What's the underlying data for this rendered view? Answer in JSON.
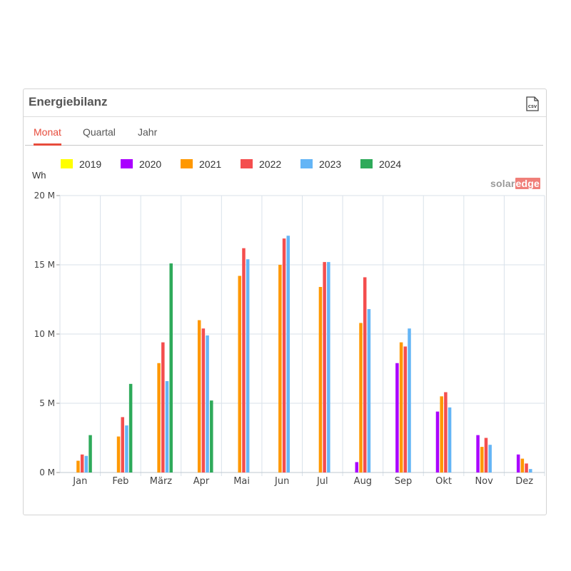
{
  "panel": {
    "title": "Energiebilanz",
    "csv_icon": "csv-file-icon",
    "tabs": [
      {
        "label": "Monat",
        "active": true
      },
      {
        "label": "Quartal",
        "active": false
      },
      {
        "label": "Jahr",
        "active": false
      }
    ],
    "unit_label": "Wh",
    "brand": {
      "part1": "solar",
      "part2": "edge"
    }
  },
  "colors": {
    "accent": "#e74c3c",
    "grid": "#d9e2ea",
    "axis_text": "#444444"
  },
  "chart_data": {
    "type": "bar",
    "title": "",
    "ylabel": "Wh",
    "xlabel": "",
    "categories": [
      "Jan",
      "Feb",
      "März",
      "Apr",
      "Mai",
      "Jun",
      "Jul",
      "Aug",
      "Sep",
      "Okt",
      "Nov",
      "Dez"
    ],
    "ylim": [
      0,
      20000000
    ],
    "yticks": [
      0,
      5000000,
      10000000,
      15000000,
      20000000
    ],
    "ytick_labels": [
      "0 M",
      "5 M",
      "10 M",
      "15 M",
      "20 M"
    ],
    "grid": true,
    "legend_position": "top-left",
    "series": [
      {
        "name": "2019",
        "color": "#ffff00",
        "values": [
          null,
          null,
          null,
          null,
          null,
          null,
          null,
          null,
          null,
          null,
          null,
          null
        ]
      },
      {
        "name": "2020",
        "color": "#aa00ff",
        "values": [
          null,
          null,
          null,
          null,
          null,
          null,
          null,
          750000,
          7900000,
          4400000,
          2700000,
          1300000
        ]
      },
      {
        "name": "2021",
        "color": "#ff9800",
        "values": [
          850000,
          2600000,
          7900000,
          11000000,
          14200000,
          15000000,
          13400000,
          10800000,
          9400000,
          5500000,
          1850000,
          1000000
        ]
      },
      {
        "name": "2022",
        "color": "#f44e4e",
        "values": [
          1300000,
          4000000,
          9400000,
          10400000,
          16200000,
          16900000,
          15200000,
          14100000,
          9100000,
          5800000,
          2500000,
          650000
        ]
      },
      {
        "name": "2023",
        "color": "#64b5f6",
        "values": [
          1200000,
          3400000,
          6600000,
          9900000,
          15400000,
          17100000,
          15200000,
          11800000,
          10400000,
          4700000,
          2000000,
          250000
        ]
      },
      {
        "name": "2024",
        "color": "#2eaa5a",
        "values": [
          2700000,
          6400000,
          15100000,
          5200000,
          null,
          null,
          null,
          null,
          null,
          null,
          null,
          null
        ]
      }
    ]
  }
}
